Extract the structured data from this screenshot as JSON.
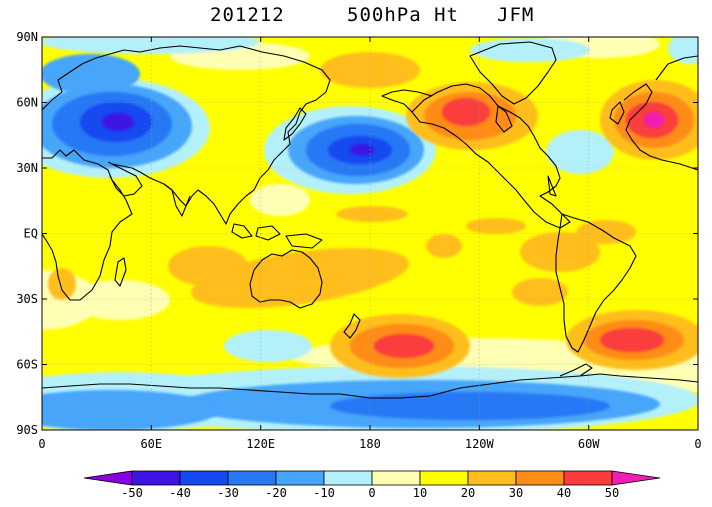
{
  "title": {
    "date": "201212",
    "field": "500hPa Ht",
    "season": "JFM"
  },
  "colors": {
    "accent": "#ffff00",
    "coast": "#000000",
    "grid": "#888888"
  },
  "map": {
    "lat_labels": [
      "90N",
      "60N",
      "30N",
      "EQ",
      "30S",
      "60S",
      "90S"
    ],
    "lon_labels": [
      "0",
      "60E",
      "120E",
      "180",
      "120W",
      "60W",
      "0"
    ]
  },
  "colorbar": {
    "levels": [
      "-50",
      "-40",
      "-30",
      "-20",
      "-10",
      "0",
      "10",
      "20",
      "30",
      "40",
      "50"
    ],
    "colors": [
      "#8a00e6",
      "#3c14e6",
      "#1448f0",
      "#2878f5",
      "#46a5fa",
      "#b4f0fa",
      "#ffffb4",
      "#ffff00",
      "#ffbe1e",
      "#ff8c14",
      "#fa3c3c",
      "#f01eb4"
    ]
  }
}
